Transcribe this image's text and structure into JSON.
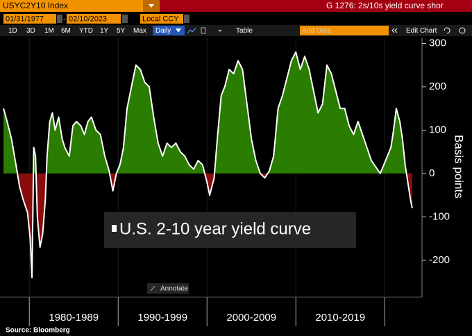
{
  "header": {
    "ticker": "USYC2Y10 Index",
    "function": "G 1276: 2s/10s yield curve shor"
  },
  "controls": {
    "start_date": "01/31/1977",
    "end_date": "02/10/2023",
    "currency": "Local CCY",
    "periods": [
      "1D",
      "3D",
      "1M",
      "6M",
      "YTD",
      "1Y",
      "5Y",
      "Max"
    ],
    "frequency": "Daily",
    "table": "Table",
    "add_data": "Add Data",
    "edit_chart": "Edit Chart"
  },
  "annotate": "Annotate",
  "source": "Source: Bloomberg",
  "chart_data": {
    "type": "area",
    "y_label": "Basis points",
    "xlim": [
      1976.7,
      2024.2
    ],
    "xticks": [
      1980,
      1990,
      2000,
      2010,
      2020
    ],
    "x_labels": [
      "1980-1989",
      "1990-1999",
      "2000-2009",
      "2010-2019"
    ],
    "ylim": [
      -285,
      312
    ],
    "yticks": [
      -200,
      -100,
      0,
      100,
      200,
      300
    ],
    "series": [
      {
        "name": "U.S. 2-10 year yield curve",
        "color": "#ffffff",
        "fill_positive": "#2a7d00",
        "fill_negative": "#8a0c0c",
        "x": [
          1977.1,
          1977.5,
          1978.0,
          1978.5,
          1978.9,
          1979.3,
          1979.8,
          1980.1,
          1980.3,
          1980.5,
          1980.7,
          1980.9,
          1981.2,
          1981.5,
          1981.8,
          1982.0,
          1982.3,
          1982.6,
          1982.9,
          1983.3,
          1983.7,
          1984.0,
          1984.5,
          1984.9,
          1985.3,
          1985.8,
          1986.2,
          1986.6,
          1987.0,
          1987.5,
          1988.0,
          1988.5,
          1989.0,
          1989.4,
          1989.8,
          1990.2,
          1990.6,
          1991.0,
          1991.5,
          1992.0,
          1992.5,
          1993.0,
          1993.5,
          1994.0,
          1994.5,
          1995.0,
          1995.5,
          1996.0,
          1996.5,
          1997.0,
          1997.5,
          1998.0,
          1998.5,
          1999.0,
          1999.5,
          2000.0,
          2000.3,
          2000.8,
          2001.2,
          2001.6,
          2002.0,
          2002.5,
          2003.0,
          2003.5,
          2004.0,
          2004.5,
          2005.0,
          2005.5,
          2006.0,
          2006.5,
          2007.0,
          2007.5,
          2008.0,
          2008.5,
          2009.0,
          2009.5,
          2010.0,
          2010.5,
          2011.0,
          2011.5,
          2012.0,
          2012.5,
          2013.0,
          2013.5,
          2014.0,
          2014.5,
          2015.0,
          2015.5,
          2016.0,
          2016.5,
          2017.0,
          2017.5,
          2018.0,
          2018.5,
          2019.0,
          2019.5,
          2019.9,
          2020.3,
          2020.7,
          2021.0,
          2021.3,
          2021.7,
          2022.0,
          2022.3,
          2022.6,
          2022.9,
          2023.1
        ],
        "values": [
          150,
          120,
          80,
          20,
          -30,
          -60,
          -90,
          -150,
          -240,
          60,
          40,
          -100,
          -170,
          -140,
          -60,
          40,
          120,
          140,
          100,
          130,
          80,
          60,
          40,
          110,
          120,
          110,
          90,
          120,
          130,
          100,
          90,
          40,
          5,
          -40,
          0,
          20,
          60,
          150,
          200,
          250,
          240,
          210,
          200,
          130,
          70,
          40,
          70,
          60,
          70,
          50,
          40,
          20,
          10,
          30,
          20,
          -20,
          -50,
          -10,
          90,
          180,
          200,
          240,
          230,
          260,
          240,
          160,
          80,
          30,
          0,
          -10,
          5,
          40,
          150,
          180,
          220,
          260,
          280,
          240,
          270,
          240,
          190,
          140,
          160,
          250,
          230,
          190,
          150,
          150,
          110,
          90,
          120,
          90,
          60,
          30,
          15,
          0,
          20,
          40,
          60,
          100,
          150,
          120,
          80,
          20,
          -20,
          -60,
          -80
        ]
      }
    ]
  }
}
